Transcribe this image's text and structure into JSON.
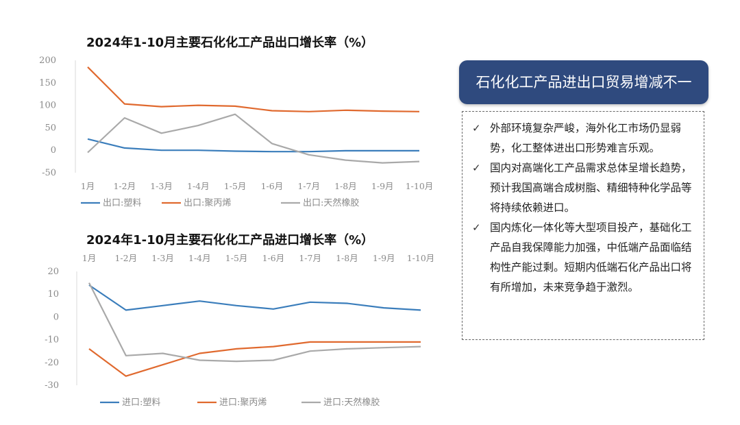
{
  "chart_data": [
    {
      "type": "line",
      "title": "2024年1-10月主要石化化工产品出口增长率（%）",
      "categories": [
        "1月",
        "1-2月",
        "1-3月",
        "1-4月",
        "1-5月",
        "1-6月",
        "1-7月",
        "1-8月",
        "1-9月",
        "1-10月"
      ],
      "ylim": [
        -50,
        200
      ],
      "yticks": [
        200,
        150,
        100,
        50,
        0,
        -50
      ],
      "legend_position": "bottom",
      "grid": false,
      "series": [
        {
          "name": "出口:塑料",
          "color": "#3a7dbb",
          "values": [
            25,
            5,
            0,
            0,
            -2,
            -3,
            -3,
            -1,
            -1,
            -1
          ]
        },
        {
          "name": "出口:聚丙烯",
          "color": "#e0692e",
          "values": [
            185,
            103,
            97,
            100,
            98,
            88,
            86,
            89,
            87,
            86
          ]
        },
        {
          "name": "出口:天然橡胶",
          "color": "#a9a9a9",
          "values": [
            -5,
            72,
            38,
            55,
            80,
            15,
            -10,
            -22,
            -28,
            -25
          ]
        }
      ]
    },
    {
      "type": "line",
      "title": "2024年1-10月主要石化化工产品进口增长率（%）",
      "categories": [
        "1月",
        "1-2月",
        "1-3月",
        "1-4月",
        "1-5月",
        "1-6月",
        "1-7月",
        "1-8月",
        "1-9月",
        "1-10月"
      ],
      "ylim": [
        -30,
        20
      ],
      "yticks": [
        20,
        10,
        0,
        -10,
        -20,
        -30
      ],
      "legend_position": "bottom",
      "grid": false,
      "series": [
        {
          "name": "进口:塑料",
          "color": "#3a7dbb",
          "values": [
            14,
            3,
            5,
            7,
            5,
            3.5,
            6.5,
            6,
            4,
            3
          ]
        },
        {
          "name": "进口:聚丙烯",
          "color": "#e0692e",
          "values": [
            -14,
            -26,
            -21,
            -16,
            -14,
            -13,
            -11,
            -11,
            -11,
            -11
          ]
        },
        {
          "name": "进口:天然橡胶",
          "color": "#a9a9a9",
          "values": [
            15,
            -17,
            -16,
            -19,
            -19.5,
            -19,
            -15,
            -14,
            -13.5,
            -13
          ]
        }
      ]
    }
  ],
  "panel": {
    "header": "石化化工产品进出口贸易增减不一",
    "check_symbol": "✓",
    "bullets": [
      "外部环境复杂严峻，海外化工市场仍显弱势，化工整体进出口形势难言乐观。",
      "国内对高端化工产品需求总体呈增长趋势，预计我国高端合成树脂、精细特种化学品等将持续依赖进口。",
      "国内炼化一体化等大型项目投产，基础化工产品自我保障能力加强，中低端产品面临结构性产能过剩。短期内低端石化产品出口将有所增加，未来竞争趋于激烈。"
    ]
  }
}
